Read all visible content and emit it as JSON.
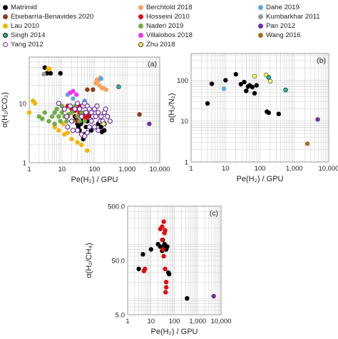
{
  "legend": [
    {
      "key": "matrimid",
      "label": "Matrimid",
      "fill": "#000000",
      "edge": "#000000",
      "hollow": false
    },
    {
      "key": "berchtold",
      "label": "Berchtold 2018",
      "fill": "#f4a460",
      "edge": "#f4a460",
      "hollow": false
    },
    {
      "key": "dahe",
      "label": "Dahe 2019",
      "fill": "#5aa9e6",
      "edge": "#5aa9e6",
      "hollow": false
    },
    {
      "key": "etxebarria",
      "label": "Etxebarría-Benavides 2020",
      "fill": "#8b3a1a",
      "edge": "#8b3a1a",
      "hollow": false
    },
    {
      "key": "hosseini",
      "label": "Hosseini 2010",
      "fill": "#dd1111",
      "edge": "#dd1111",
      "hollow": false
    },
    {
      "key": "kumbarkhar",
      "label": "Kumbarkhar 2011",
      "fill": "#999999",
      "edge": "#999999",
      "hollow": false
    },
    {
      "key": "lau",
      "label": "Lau 2010",
      "fill": "#f5b400",
      "edge": "#f5b400",
      "hollow": false
    },
    {
      "key": "naderi",
      "label": "Naderi 2019",
      "fill": "#70ad47",
      "edge": "#70ad47",
      "hollow": false
    },
    {
      "key": "pan",
      "label": "Pan 2012",
      "fill": "#7030a0",
      "edge": "#7030a0",
      "hollow": false
    },
    {
      "key": "singh",
      "label": "Singh 2014",
      "fill": "#2ab3a6",
      "edge": "#111111",
      "hollow": false
    },
    {
      "key": "villalobos",
      "label": "Villalobos 2018",
      "fill": "#ee33ee",
      "edge": "#ee33ee",
      "hollow": false
    },
    {
      "key": "wang",
      "label": "Wang 2016",
      "fill": "#a0701a",
      "edge": "#a0701a",
      "hollow": false
    },
    {
      "key": "yang",
      "label": "Yang 2012",
      "fill": "#ffffff",
      "edge": "#7030a0",
      "hollow": true
    },
    {
      "key": "zhu",
      "label": "Zhu 2018",
      "fill": "#ffff66",
      "edge": "#333333",
      "hollow": false
    }
  ],
  "chart_data": [
    {
      "type": "scatter",
      "panel_label": "(a)",
      "xlabel": "Pe(H₂) / GPU",
      "ylabel": "α(H₂/CO₂)",
      "xscale": "log",
      "yscale": "log",
      "xlim": [
        1,
        10000
      ],
      "ylim": [
        1,
        60
      ],
      "xticks": [
        1,
        10,
        100,
        1000,
        10000
      ],
      "xtick_labels": [
        "1",
        "10",
        "100",
        "1,000",
        "10,000"
      ],
      "yticks": [
        1,
        10
      ],
      "ytick_labels": [
        "1",
        "10"
      ],
      "grid": true,
      "series": [
        {
          "key": "matrimid",
          "points": [
            [
              3.0,
              40
            ],
            [
              3.5,
              32
            ],
            [
              4.5,
              32
            ],
            [
              9,
              32
            ],
            [
              20,
              8
            ],
            [
              25,
              6
            ],
            [
              28,
              5.5
            ],
            [
              30,
              4.5
            ],
            [
              32,
              4
            ],
            [
              35,
              3.5
            ],
            [
              38,
              4.5
            ],
            [
              42,
              5
            ],
            [
              45,
              2.5
            ],
            [
              48,
              3
            ],
            [
              55,
              4
            ],
            [
              60,
              5
            ],
            [
              65,
              6
            ],
            [
              80,
              3.5
            ],
            [
              100,
              6
            ],
            [
              130,
              4.5
            ],
            [
              160,
              4
            ],
            [
              170,
              3.3
            ],
            [
              200,
              3.5
            ]
          ]
        },
        {
          "key": "berchtold",
          "points": [
            [
              110,
              22
            ],
            [
              120,
              25
            ],
            [
              130,
              24
            ],
            [
              140,
              20
            ],
            [
              150,
              27
            ],
            [
              170,
              18
            ],
            [
              190,
              18
            ],
            [
              230,
              17
            ]
          ]
        },
        {
          "key": "dahe",
          "points": [
            [
              15,
              14
            ],
            [
              22,
              12
            ],
            [
              50,
              11
            ],
            [
              160,
              26
            ]
          ]
        },
        {
          "key": "etxebarria",
          "points": [
            [
              60,
              17
            ],
            [
              90,
              17
            ],
            [
              2400,
              6.5
            ]
          ]
        },
        {
          "key": "hosseini",
          "points": [
            [
              15,
              9
            ],
            [
              20,
              8
            ],
            [
              25,
              7.5
            ],
            [
              30,
              8
            ],
            [
              35,
              7
            ],
            [
              40,
              6.5
            ],
            [
              45,
              6
            ],
            [
              50,
              7
            ],
            [
              55,
              5.5
            ],
            [
              60,
              6
            ],
            [
              70,
              6.5
            ],
            [
              30,
              5
            ],
            [
              35,
              9
            ],
            [
              28,
              6
            ]
          ]
        },
        {
          "key": "kumbarkhar",
          "points": [
            [
              2.8,
              31
            ]
          ]
        },
        {
          "key": "lau",
          "points": [
            [
              1.0,
              7
            ],
            [
              1.3,
              11
            ],
            [
              1.5,
              10
            ],
            [
              3.8,
              38
            ],
            [
              4.1,
              38
            ],
            [
              6,
              4
            ],
            [
              8,
              3.5
            ],
            [
              11,
              4.5
            ],
            [
              12,
              3
            ],
            [
              15,
              3.2
            ],
            [
              20,
              2.5
            ],
            [
              30,
              2.2
            ],
            [
              40,
              2.0
            ],
            [
              60,
              1.6
            ]
          ]
        },
        {
          "key": "naderi",
          "points": [
            [
              2,
              6
            ],
            [
              2.5,
              5.5
            ],
            [
              3,
              7
            ],
            [
              4,
              5
            ],
            [
              5,
              6
            ],
            [
              6,
              7
            ],
            [
              7,
              8
            ],
            [
              8,
              6
            ],
            [
              9,
              5
            ],
            [
              10,
              7
            ],
            [
              12,
              6
            ],
            [
              14,
              5
            ],
            [
              16,
              6.5
            ],
            [
              20,
              7
            ],
            [
              22,
              5
            ],
            [
              25,
              9
            ],
            [
              30,
              6
            ],
            [
              35,
              5
            ],
            [
              40,
              7
            ],
            [
              50,
              5
            ],
            [
              6,
              4.5
            ],
            [
              10,
              9
            ]
          ]
        },
        {
          "key": "pan",
          "points": [
            [
              4800,
              4.5
            ]
          ]
        },
        {
          "key": "singh",
          "points": [
            [
              550,
              19
            ]
          ]
        },
        {
          "key": "villalobos",
          "points": [
            [
              18,
              15
            ],
            [
              22,
              16
            ],
            [
              28,
              14
            ]
          ]
        },
        {
          "key": "wang",
          "points": [
            [
              15,
              6
            ]
          ]
        },
        {
          "key": "yang",
          "points": [
            [
              8,
              10
            ],
            [
              12,
              8
            ],
            [
              14,
              6
            ],
            [
              18,
              9
            ],
            [
              20,
              5
            ],
            [
              25,
              8
            ],
            [
              30,
              10
            ],
            [
              35,
              8
            ],
            [
              40,
              6
            ],
            [
              45,
              9
            ],
            [
              50,
              10
            ],
            [
              55,
              7
            ],
            [
              60,
              9
            ],
            [
              70,
              8
            ],
            [
              80,
              7
            ],
            [
              90,
              6
            ],
            [
              100,
              8
            ],
            [
              110,
              6
            ],
            [
              120,
              9
            ],
            [
              130,
              7
            ],
            [
              150,
              5
            ],
            [
              160,
              6
            ],
            [
              180,
              5
            ],
            [
              200,
              7
            ],
            [
              220,
              8
            ],
            [
              250,
              6
            ],
            [
              300,
              5
            ],
            [
              15,
              4
            ],
            [
              22,
              3.5
            ],
            [
              30,
              3.5
            ],
            [
              40,
              3
            ],
            [
              50,
              2.8
            ],
            [
              60,
              3.2
            ],
            [
              70,
              4
            ],
            [
              80,
              5
            ],
            [
              100,
              4
            ],
            [
              130,
              3.5
            ],
            [
              200,
              4.5
            ]
          ]
        },
        {
          "key": "zhu",
          "points": [
            [
              190,
              4.5
            ]
          ]
        }
      ]
    },
    {
      "type": "scatter",
      "panel_label": "(b)",
      "xlabel": "Pe(H₂) / GPU",
      "ylabel": "α(H₂/N₂)",
      "xscale": "log",
      "yscale": "log",
      "xlim": [
        1,
        10000
      ],
      "ylim": [
        1,
        450
      ],
      "xticks": [
        1,
        10,
        100,
        1000,
        10000
      ],
      "xtick_labels": [
        "1",
        "10",
        "100",
        "1,000",
        "10,000"
      ],
      "yticks": [
        1,
        10,
        100
      ],
      "ytick_labels": [
        "1",
        "10",
        "100"
      ],
      "grid": true,
      "series": [
        {
          "key": "matrimid",
          "points": [
            [
              3,
              27
            ],
            [
              4,
              82
            ],
            [
              10,
              100
            ],
            [
              20,
              140
            ],
            [
              28,
              80
            ],
            [
              35,
              90
            ],
            [
              40,
              55
            ],
            [
              45,
              70
            ],
            [
              50,
              75
            ],
            [
              60,
              68
            ],
            [
              70,
              48
            ],
            [
              80,
              75
            ],
            [
              160,
              17
            ],
            [
              180,
              16
            ],
            [
              350,
              15
            ]
          ]
        },
        {
          "key": "dahe",
          "points": [
            [
              9,
              62
            ]
          ]
        },
        {
          "key": "zhu",
          "points": [
            [
              70,
              125
            ],
            [
              150,
              135
            ],
            [
              200,
              95
            ]
          ]
        },
        {
          "key": "singh",
          "points": [
            [
              180,
              118
            ],
            [
              560,
              58
            ]
          ]
        },
        {
          "key": "pan",
          "points": [
            [
              4800,
              11
            ]
          ]
        },
        {
          "key": "wang",
          "points": [
            [
              2400,
              2.8
            ]
          ]
        }
      ]
    },
    {
      "type": "scatter",
      "panel_label": "(c)",
      "xlabel": "Pe(H₂) / GPU",
      "ylabel": "α(H₂/CH₄)",
      "xscale": "log",
      "yscale": "log",
      "xlim": [
        1,
        10000
      ],
      "ylim": [
        5,
        500
      ],
      "xticks": [
        1,
        10,
        100,
        1000,
        10000
      ],
      "xtick_labels": [
        "1",
        "10",
        "100",
        "1,000",
        "10,000"
      ],
      "yticks": [
        5,
        50,
        500
      ],
      "ytick_labels": [
        "5.0",
        "50.0",
        "500.0"
      ],
      "grid": true,
      "series": [
        {
          "key": "matrimid",
          "points": [
            [
              3,
              35
            ],
            [
              4.5,
              65
            ],
            [
              10,
              80
            ],
            [
              20,
              100
            ],
            [
              25,
              90
            ],
            [
              30,
              75
            ],
            [
              32,
              120
            ],
            [
              35,
              90
            ],
            [
              38,
              100
            ],
            [
              40,
              95
            ],
            [
              45,
              80
            ],
            [
              50,
              90
            ],
            [
              55,
              30
            ],
            [
              60,
              28
            ],
            [
              350,
              10
            ]
          ]
        },
        {
          "key": "hosseini",
          "points": [
            [
              5,
              32
            ],
            [
              5.5,
              35
            ],
            [
              25,
              190
            ],
            [
              30,
              210
            ],
            [
              35,
              260
            ],
            [
              38,
              160
            ],
            [
              40,
              180
            ],
            [
              30,
              120
            ],
            [
              32,
              80
            ],
            [
              35,
              60
            ],
            [
              40,
              35
            ],
            [
              45,
              20
            ],
            [
              45,
              16
            ],
            [
              42,
              13
            ]
          ]
        },
        {
          "key": "pan",
          "points": [
            [
              4800,
              11
            ]
          ]
        }
      ]
    }
  ]
}
